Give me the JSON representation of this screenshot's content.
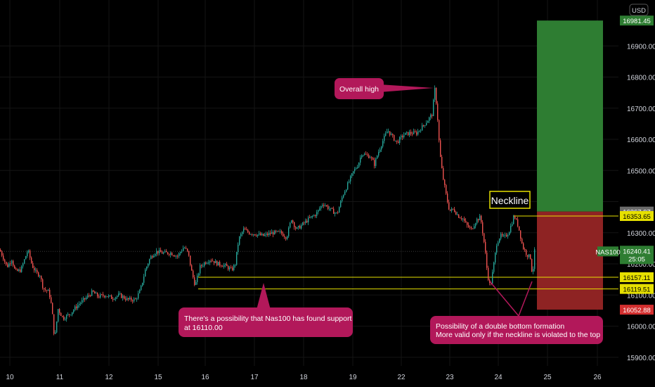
{
  "currency": "USD",
  "symbol": "NAS100",
  "countdown": "25:05",
  "colors": {
    "background": "#000000",
    "up": "#26a69a",
    "down": "#ef5350",
    "level": "#e6e000",
    "target_zone": "#2e7d32",
    "stop_zone": "#8e2323",
    "callout": "#b2185a"
  },
  "chart_data": {
    "type": "candlestick",
    "ylim": [
      15870,
      16995
    ],
    "x_tick_labels": [
      "10",
      "11",
      "12",
      "15",
      "15",
      "16",
      "17",
      "18",
      "19",
      "22",
      "23",
      "24",
      "25",
      "26"
    ],
    "y_ticks": [
      15900,
      16000,
      16100,
      16200,
      16300,
      16400,
      16500,
      16600,
      16700,
      16800,
      16900
    ],
    "y_tick_labels": [
      "15900.00",
      "16000.00",
      "16100.00",
      "16200.00",
      "16300.00",
      "16400.00",
      "16500.00",
      "16600.00",
      "16700.00",
      "16800.00",
      "16900.00"
    ],
    "price_path": [
      [
        0,
        16245
      ],
      [
        5,
        16220
      ],
      [
        10,
        16190
      ],
      [
        17,
        16215
      ],
      [
        22,
        16175
      ],
      [
        30,
        16180
      ],
      [
        40,
        16245
      ],
      [
        46,
        16195
      ],
      [
        52,
        16170
      ],
      [
        57,
        16165
      ],
      [
        62,
        16120
      ],
      [
        70,
        16110
      ],
      [
        74,
        16060
      ],
      [
        78,
        15955
      ],
      [
        83,
        16055
      ],
      [
        90,
        16025
      ],
      [
        100,
        16040
      ],
      [
        112,
        16070
      ],
      [
        125,
        16095
      ],
      [
        132,
        16110
      ],
      [
        140,
        16095
      ],
      [
        150,
        16100
      ],
      [
        160,
        16090
      ],
      [
        170,
        16100
      ],
      [
        182,
        16085
      ],
      [
        193,
        16085
      ],
      [
        200,
        16115
      ],
      [
        207,
        16180
      ],
      [
        214,
        16220
      ],
      [
        222,
        16240
      ],
      [
        232,
        16235
      ],
      [
        243,
        16235
      ],
      [
        253,
        16225
      ],
      [
        262,
        16255
      ],
      [
        268,
        16235
      ],
      [
        273,
        16175
      ],
      [
        278,
        16130
      ],
      [
        285,
        16190
      ],
      [
        292,
        16205
      ],
      [
        300,
        16215
      ],
      [
        310,
        16200
      ],
      [
        320,
        16195
      ],
      [
        330,
        16180
      ],
      [
        335,
        16200
      ],
      [
        340,
        16280
      ],
      [
        347,
        16310
      ],
      [
        355,
        16300
      ],
      [
        365,
        16295
      ],
      [
        375,
        16290
      ],
      [
        388,
        16300
      ],
      [
        400,
        16300
      ],
      [
        408,
        16285
      ],
      [
        415,
        16345
      ],
      [
        422,
        16310
      ],
      [
        430,
        16325
      ],
      [
        440,
        16345
      ],
      [
        450,
        16360
      ],
      [
        460,
        16395
      ],
      [
        470,
        16375
      ],
      [
        480,
        16360
      ],
      [
        488,
        16420
      ],
      [
        495,
        16455
      ],
      [
        503,
        16495
      ],
      [
        510,
        16520
      ],
      [
        515,
        16555
      ],
      [
        520,
        16550
      ],
      [
        527,
        16545
      ],
      [
        533,
        16520
      ],
      [
        538,
        16555
      ],
      [
        545,
        16595
      ],
      [
        552,
        16630
      ],
      [
        558,
        16610
      ],
      [
        565,
        16590
      ],
      [
        575,
        16615
      ],
      [
        583,
        16620
      ],
      [
        593,
        16620
      ],
      [
        603,
        16645
      ],
      [
        610,
        16665
      ],
      [
        615,
        16680
      ],
      [
        619,
        16760
      ],
      [
        622,
        16700
      ],
      [
        626,
        16560
      ],
      [
        630,
        16485
      ],
      [
        636,
        16410
      ],
      [
        640,
        16370
      ],
      [
        646,
        16375
      ],
      [
        652,
        16355
      ],
      [
        659,
        16345
      ],
      [
        664,
        16325
      ],
      [
        671,
        16310
      ],
      [
        678,
        16340
      ],
      [
        684,
        16350
      ],
      [
        690,
        16255
      ],
      [
        694,
        16165
      ],
      [
        698,
        16125
      ],
      [
        703,
        16200
      ],
      [
        707,
        16265
      ],
      [
        712,
        16290
      ],
      [
        718,
        16285
      ],
      [
        724,
        16300
      ],
      [
        732,
        16355
      ],
      [
        738,
        16320
      ],
      [
        744,
        16255
      ],
      [
        750,
        16230
      ],
      [
        755,
        16220
      ],
      [
        758,
        16160
      ],
      [
        761,
        16240
      ]
    ],
    "last_price": "16240.41",
    "price_levels": [
      {
        "name": "Neckline",
        "value": 16353.65,
        "label": "16353.65"
      },
      {
        "name": "support-1",
        "value": 16157.11,
        "label": "16157.11"
      },
      {
        "name": "support-2",
        "value": 16119.51,
        "label": "16119.51"
      }
    ],
    "position": {
      "target_label": "16981.45",
      "target_value": 16981.45,
      "entry_label": "16367.97",
      "entry_value": 16367.97,
      "stop_label": "16052.88",
      "stop_value": 16052.88
    },
    "annotations": {
      "overall_high": "Overall high",
      "neckline": "Neckline",
      "support_note_line1": "There's a possibility that Nas100 has found support",
      "support_note_line2": "at 16110.00",
      "double_bottom_line1": "Possibility of a double bottom formation",
      "double_bottom_line2": "More valid only if the neckline is violated to the top"
    }
  }
}
